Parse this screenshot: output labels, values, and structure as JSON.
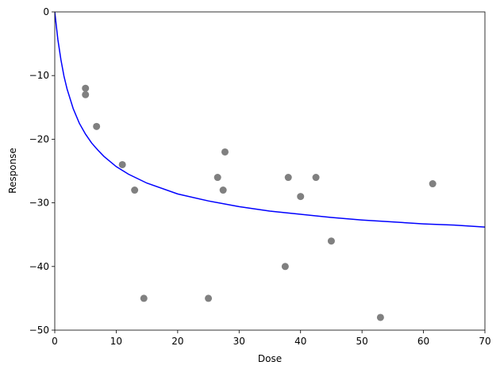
{
  "chart_data": {
    "type": "scatter",
    "title": "",
    "xlabel": "Dose",
    "ylabel": "Response",
    "xlim": [
      0,
      70
    ],
    "ylim": [
      -50,
      0
    ],
    "xticks": [
      0,
      10,
      20,
      30,
      40,
      50,
      60,
      70
    ],
    "yticks": [
      0,
      -10,
      -20,
      -30,
      -40,
      -50
    ],
    "xtick_labels": [
      "0",
      "10",
      "20",
      "30",
      "40",
      "50",
      "60",
      "70"
    ],
    "ytick_labels": [
      "0",
      "−10",
      "−20",
      "−30",
      "−40",
      "−50"
    ],
    "grid": false,
    "legend": "none",
    "points": {
      "color": "#808080",
      "x": [
        5.0,
        5.0,
        6.8,
        11.0,
        13.0,
        14.5,
        25.0,
        26.5,
        27.4,
        27.7,
        37.5,
        38.0,
        40.0,
        42.5,
        45.0,
        53.0,
        61.5
      ],
      "y": [
        -12,
        -13,
        -18,
        -24,
        -28,
        -45,
        -45,
        -26,
        -28,
        -22,
        -40,
        -26,
        -29,
        -26,
        -36,
        -48,
        -27
      ]
    },
    "fit_curve": {
      "color": "#0000ff",
      "x": [
        0,
        0.5,
        1,
        1.5,
        2,
        3,
        4,
        5,
        6,
        7,
        8,
        10,
        12,
        15,
        20,
        25,
        30,
        35,
        40,
        45,
        50,
        55,
        60,
        65,
        70
      ],
      "y": [
        0,
        -4.3,
        -7.5,
        -10.1,
        -12.1,
        -15.2,
        -17.5,
        -19.2,
        -20.6,
        -21.7,
        -22.7,
        -24.3,
        -25.5,
        -26.9,
        -28.6,
        -29.7,
        -30.6,
        -31.3,
        -31.8,
        -32.3,
        -32.7,
        -33.0,
        -33.3,
        -33.5,
        -33.8
      ]
    }
  }
}
